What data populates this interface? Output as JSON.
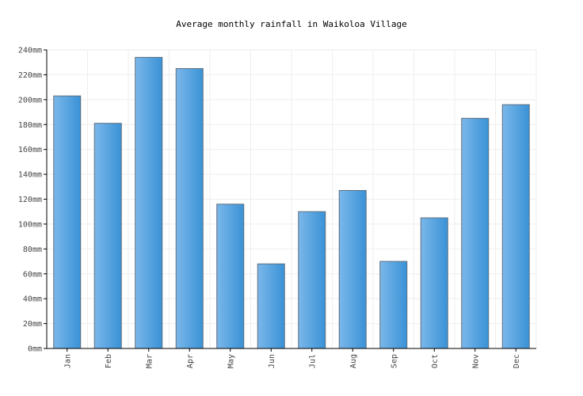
{
  "chart_data": {
    "type": "bar",
    "title": "Average monthly rainfall in Waikoloa Village",
    "categories": [
      "Jan",
      "Feb",
      "Mar",
      "Apr",
      "May",
      "Jun",
      "Jul",
      "Aug",
      "Sep",
      "Oct",
      "Nov",
      "Dec"
    ],
    "values": [
      203,
      181,
      234,
      225,
      116,
      68,
      110,
      127,
      70,
      105,
      185,
      196
    ],
    "unit": "mm",
    "y_ticks": [
      "0mm",
      "20mm",
      "40mm",
      "60mm",
      "80mm",
      "100mm",
      "120mm",
      "140mm",
      "160mm",
      "180mm",
      "200mm",
      "220mm",
      "240mm"
    ],
    "ylim": [
      0,
      240
    ],
    "grid": true,
    "colors": {
      "bar_light": "#7ab7ea",
      "bar_dark": "#3a92d6",
      "bar_stroke": "#5f6f7f",
      "grid": "#eeeeee",
      "axis": "#000000"
    }
  }
}
